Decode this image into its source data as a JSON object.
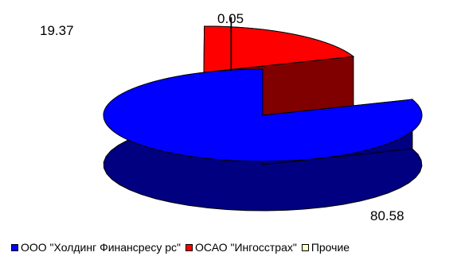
{
  "chart_data": {
    "type": "pie",
    "title": "",
    "style": "3d-exploded",
    "legend_position": "bottom",
    "slices": [
      {
        "name": "ООО \"Холдинг Финансресурс\"",
        "value": 80.58,
        "label": "80.58",
        "color": "#0000ff",
        "side_color": "#000080"
      },
      {
        "name": "ОСАО \"Ингосстрах\"",
        "value": 19.37,
        "label": "19.37",
        "color": "#ff0000",
        "side_color": "#800000"
      },
      {
        "name": "Прочие",
        "value": 0.05,
        "label": "0.05",
        "color": "#ffffcc",
        "side_color": "#808066"
      }
    ]
  },
  "legend": {
    "items": [
      {
        "label": "ООО \"Холдинг Финансресу рс\"",
        "color": "#0000ff"
      },
      {
        "label": "ОСАО \"Ингосстрах\"",
        "color": "#ff0000"
      },
      {
        "label": "Прочие",
        "color": "#ffffcc"
      }
    ]
  }
}
